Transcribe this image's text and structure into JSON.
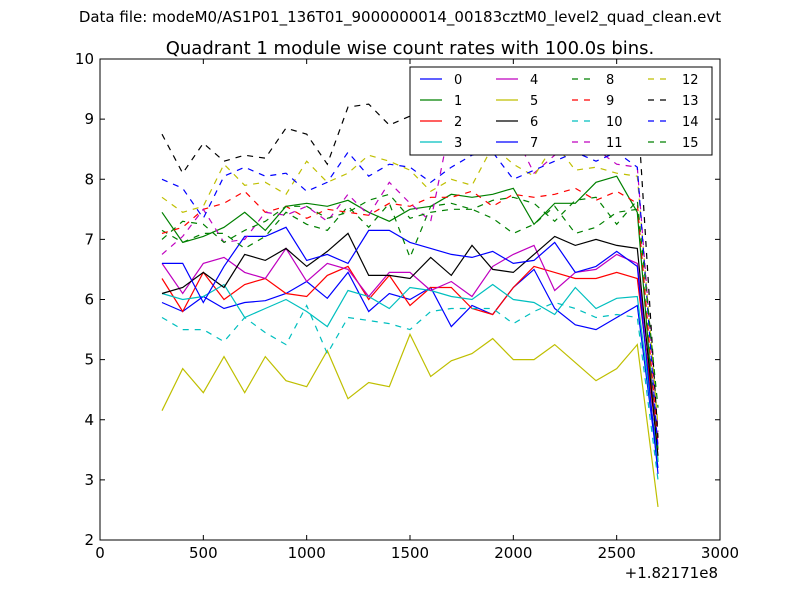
{
  "figure": {
    "suptitle": "Data file: modeM0/AS1P01_136T01_9000000014_00183cztM0_level2_quad_clean.evt"
  },
  "chart_data": {
    "type": "line",
    "title": "Quadrant 1 module wise count rates with 100.0s bins.",
    "xlabel": "",
    "ylabel": "",
    "x_offset_label": "+1.82171e8",
    "xlim": [
      0,
      3000
    ],
    "ylim": [
      2,
      10
    ],
    "xticks": [
      "0",
      "500",
      "1000",
      "1500",
      "2000",
      "2500",
      "3000"
    ],
    "yticks": [
      "2",
      "3",
      "4",
      "5",
      "6",
      "7",
      "8",
      "9",
      "10"
    ],
    "grid": false,
    "legend_position": "top-right",
    "x": [
      300,
      400,
      500,
      600,
      700,
      800,
      900,
      1000,
      1100,
      1200,
      1300,
      1400,
      1500,
      1600,
      1700,
      1800,
      1900,
      2000,
      2100,
      2200,
      2300,
      2400,
      2500,
      2600,
      2700
    ],
    "series": [
      {
        "name": "0",
        "color": "#0000ff",
        "dash": "solid",
        "values": [
          5.95,
          5.8,
          6.05,
          5.85,
          5.95,
          5.98,
          6.1,
          6.3,
          6.02,
          6.45,
          5.8,
          6.1,
          6.0,
          6.2,
          5.55,
          5.9,
          5.75,
          6.2,
          6.5,
          5.85,
          5.58,
          5.5,
          5.7,
          5.9,
          3.2
        ]
      },
      {
        "name": "1",
        "color": "#008000",
        "dash": "solid",
        "values": [
          7.45,
          6.95,
          7.05,
          7.2,
          7.45,
          7.15,
          7.55,
          7.6,
          7.55,
          7.65,
          7.45,
          7.3,
          7.5,
          7.55,
          7.75,
          7.7,
          7.75,
          7.85,
          7.25,
          7.6,
          7.6,
          7.95,
          8.05,
          7.45,
          3.3
        ]
      },
      {
        "name": "2",
        "color": "#ff0000",
        "dash": "solid",
        "values": [
          6.35,
          5.8,
          6.45,
          6.0,
          6.25,
          6.35,
          6.1,
          6.05,
          6.4,
          6.55,
          6.0,
          6.4,
          5.9,
          6.2,
          6.2,
          5.85,
          5.75,
          6.2,
          6.55,
          6.45,
          6.35,
          6.35,
          6.45,
          6.35,
          3.5
        ]
      },
      {
        "name": "3",
        "color": "#00bfbf",
        "dash": "solid",
        "values": [
          6.1,
          6.0,
          6.05,
          6.25,
          5.7,
          5.85,
          6.0,
          5.8,
          5.55,
          6.15,
          6.05,
          5.85,
          6.2,
          6.15,
          6.05,
          6.0,
          6.25,
          6.0,
          5.95,
          5.75,
          6.2,
          5.85,
          6.02,
          6.05,
          3.3
        ]
      },
      {
        "name": "4",
        "color": "#bf00bf",
        "dash": "solid",
        "values": [
          6.6,
          6.1,
          6.6,
          6.7,
          6.45,
          6.35,
          6.85,
          6.3,
          6.6,
          6.5,
          6.05,
          6.45,
          6.45,
          6.15,
          6.3,
          6.05,
          6.55,
          6.75,
          6.9,
          6.15,
          6.45,
          6.5,
          6.75,
          6.6,
          3.6
        ]
      },
      {
        "name": "5",
        "color": "#bfbf00",
        "dash": "solid",
        "values": [
          4.15,
          4.85,
          4.45,
          5.05,
          4.45,
          5.05,
          4.65,
          4.55,
          5.15,
          4.35,
          4.62,
          4.55,
          5.42,
          4.72,
          4.98,
          5.1,
          5.35,
          5.0,
          5.0,
          5.25,
          4.95,
          4.65,
          4.85,
          5.25,
          2.55
        ]
      },
      {
        "name": "6",
        "color": "#000000",
        "dash": "solid",
        "values": [
          6.1,
          6.2,
          6.45,
          6.2,
          6.75,
          6.65,
          6.85,
          6.55,
          6.8,
          7.1,
          6.4,
          6.4,
          6.35,
          6.7,
          6.4,
          6.9,
          6.5,
          6.45,
          6.75,
          7.05,
          6.9,
          7.0,
          6.9,
          6.85,
          3.4
        ]
      },
      {
        "name": "7",
        "color": "#0000ff",
        "dash": "solid",
        "values": [
          6.6,
          6.6,
          5.95,
          6.55,
          7.05,
          7.05,
          7.2,
          6.65,
          6.75,
          6.6,
          7.15,
          7.15,
          6.95,
          6.85,
          6.75,
          6.7,
          6.8,
          6.6,
          6.65,
          6.95,
          6.45,
          6.55,
          6.8,
          6.55,
          3.1
        ]
      },
      {
        "name": "8",
        "color": "#008000",
        "dash": "dashed",
        "values": [
          7.15,
          6.95,
          7.1,
          7.1,
          6.85,
          7.05,
          7.45,
          7.25,
          7.15,
          7.55,
          7.2,
          7.6,
          6.7,
          7.55,
          7.6,
          7.5,
          7.35,
          7.1,
          7.25,
          7.55,
          7.1,
          7.2,
          7.45,
          7.5,
          3.5
        ]
      },
      {
        "name": "9",
        "color": "#ff0000",
        "dash": "dashed",
        "values": [
          7.1,
          7.2,
          7.5,
          7.6,
          7.8,
          7.45,
          7.55,
          7.35,
          7.5,
          7.45,
          7.4,
          7.6,
          7.55,
          7.7,
          7.7,
          7.8,
          7.55,
          7.75,
          7.7,
          7.75,
          7.85,
          7.65,
          7.8,
          7.6,
          3.6
        ]
      },
      {
        "name": "10",
        "color": "#00bfbf",
        "dash": "dashed",
        "values": [
          5.7,
          5.5,
          5.5,
          5.3,
          5.7,
          5.45,
          5.25,
          5.9,
          5.1,
          5.7,
          5.65,
          5.6,
          5.5,
          5.8,
          5.85,
          5.85,
          5.85,
          5.6,
          5.8,
          5.95,
          5.85,
          5.7,
          5.75,
          5.7,
          3.0
        ]
      },
      {
        "name": "11",
        "color": "#bf00bf",
        "dash": "dashed",
        "values": [
          6.75,
          7.05,
          7.5,
          6.95,
          7.0,
          7.45,
          7.4,
          7.55,
          7.3,
          7.75,
          7.4,
          7.95,
          7.6,
          7.3,
          9.0,
          9.05,
          8.85,
          8.8,
          8.1,
          8.4,
          8.6,
          8.5,
          8.25,
          8.2,
          3.8
        ]
      },
      {
        "name": "12",
        "color": "#bfbf00",
        "dash": "dashed",
        "values": [
          7.7,
          7.45,
          7.55,
          8.25,
          7.9,
          7.95,
          7.75,
          8.3,
          7.95,
          8.1,
          8.4,
          8.3,
          8.15,
          7.8,
          8.0,
          7.9,
          8.55,
          8.25,
          8.05,
          8.6,
          8.15,
          8.2,
          8.1,
          8.05,
          3.9
        ]
      },
      {
        "name": "13",
        "color": "#000000",
        "dash": "dashed",
        "values": [
          8.75,
          8.1,
          8.6,
          8.3,
          8.4,
          8.35,
          8.85,
          8.75,
          8.25,
          9.2,
          9.25,
          8.9,
          9.05,
          9.1,
          9.05,
          9.0,
          9.1,
          9.0,
          9.3,
          8.95,
          9.0,
          9.0,
          8.95,
          9.25,
          3.7
        ]
      },
      {
        "name": "14",
        "color": "#0000ff",
        "dash": "dashed",
        "values": [
          8.0,
          7.85,
          7.35,
          8.05,
          8.2,
          8.05,
          8.1,
          7.8,
          7.95,
          8.45,
          8.05,
          8.25,
          8.2,
          7.95,
          8.2,
          8.4,
          8.45,
          8.0,
          8.15,
          8.3,
          8.45,
          8.3,
          8.45,
          8.2,
          3.5
        ]
      },
      {
        "name": "15",
        "color": "#008000",
        "dash": "dashed",
        "values": [
          7.0,
          7.3,
          7.25,
          6.95,
          7.15,
          7.3,
          7.55,
          7.55,
          7.35,
          7.45,
          7.65,
          7.75,
          7.35,
          7.45,
          7.5,
          7.5,
          7.65,
          7.7,
          7.6,
          7.3,
          7.65,
          7.7,
          7.25,
          7.65,
          4.2
        ]
      }
    ]
  }
}
